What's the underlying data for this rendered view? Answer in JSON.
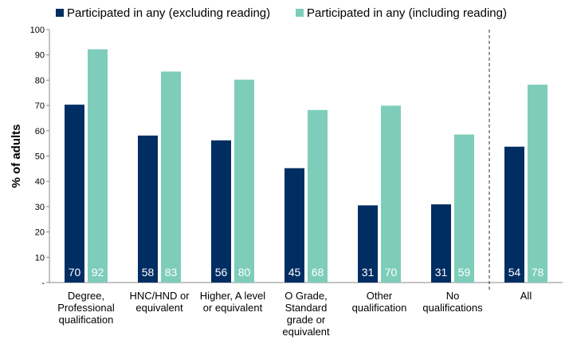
{
  "chart_data": {
    "type": "bar",
    "title": "",
    "xlabel": "",
    "ylabel": "% of adults",
    "ylim": [
      0,
      100
    ],
    "yticks": [
      "-",
      "10",
      "20",
      "30",
      "40",
      "50",
      "60",
      "70",
      "80",
      "90",
      "100"
    ],
    "grid": false,
    "legend_position": "top",
    "categories": [
      [
        "Degree,",
        "Professional",
        "qualification"
      ],
      [
        "HNC/HND or",
        "equivalent"
      ],
      [
        "Higher, A level",
        "or equivalent"
      ],
      [
        "O Grade,",
        "Standard",
        "grade or",
        "equivalent"
      ],
      [
        "Other",
        "qualification"
      ],
      [
        "No",
        "qualifications"
      ],
      [
        "All"
      ]
    ],
    "series": [
      {
        "name": "Participated in any (excluding reading)",
        "color": "#002D62",
        "values": [
          70.3,
          58.1,
          56.2,
          45.2,
          30.5,
          30.9,
          53.7
        ],
        "labels": [
          "70",
          "58",
          "56",
          "45",
          "31",
          "31",
          "54"
        ]
      },
      {
        "name": "Participated in any (including reading)",
        "color": "#7ECDBB",
        "values": [
          92.2,
          83.4,
          80.2,
          68.2,
          69.9,
          58.5,
          78.2
        ],
        "labels": [
          "92",
          "83",
          "80",
          "68",
          "70",
          "59",
          "78"
        ]
      }
    ],
    "separator_before_category": 6
  }
}
